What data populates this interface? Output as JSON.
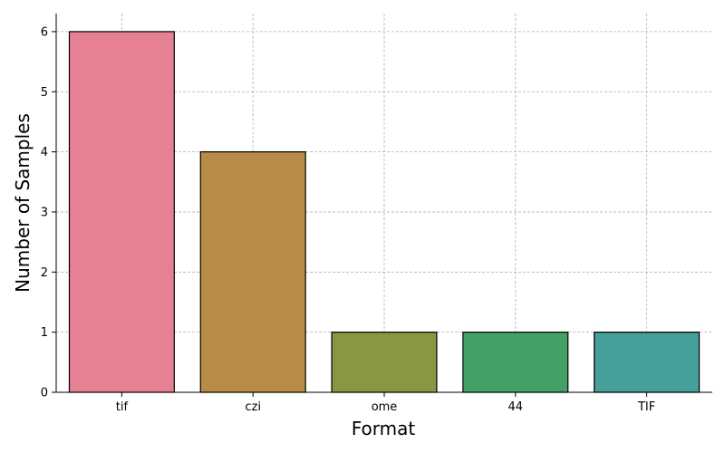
{
  "chart_data": {
    "type": "bar",
    "title": "",
    "xlabel": "Format",
    "ylabel": "Number of Samples",
    "categories": [
      "tif",
      "czi",
      "ome",
      "44",
      "TIF"
    ],
    "values": [
      6,
      4,
      1,
      1,
      1
    ],
    "colors": [
      "#e68193",
      "#b88c47",
      "#8b9642",
      "#43a066",
      "#469f99"
    ],
    "ylim": [
      0,
      6.3
    ],
    "yticks": [
      0,
      1,
      2,
      3,
      4,
      5,
      6
    ],
    "grid": true,
    "legend": "none"
  }
}
